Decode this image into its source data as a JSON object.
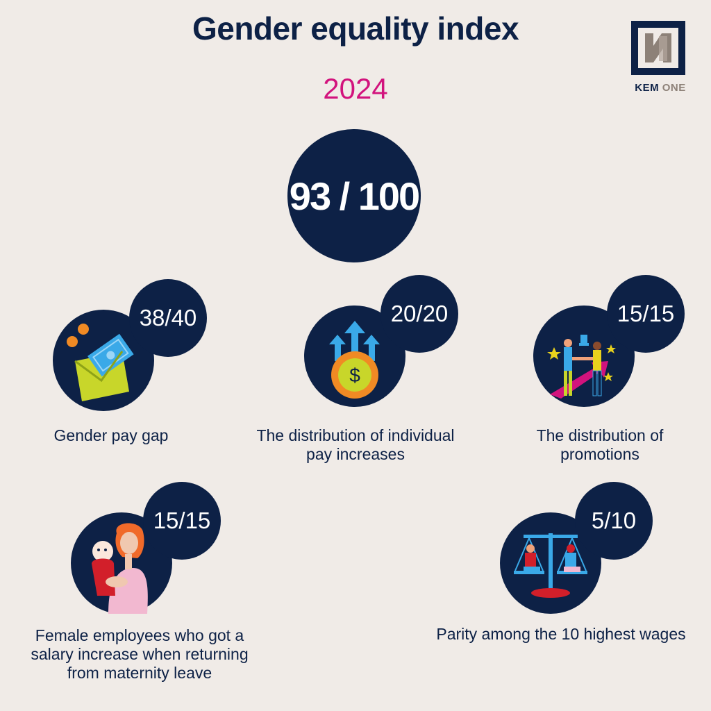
{
  "header": {
    "title": "Gender equality index",
    "year": "2024"
  },
  "logo": {
    "brand_part1": "KEM",
    "brand_part2": "ONE",
    "brand_color": "#0d2146",
    "accent_color": "#8d8178"
  },
  "total_score": "93 / 100",
  "indicators": [
    {
      "score": "38/40",
      "label": "Gender pay gap",
      "icon": "money-envelope-icon"
    },
    {
      "score": "20/20",
      "label": "The distribution of individual pay increases",
      "icon": "dollar-coin-arrows-icon"
    },
    {
      "score": "15/15",
      "label": "The distribution of promotions",
      "icon": "promotion-handshake-icon"
    },
    {
      "score": "15/15",
      "label": "Female employees who got a salary increase when returning from maternity leave",
      "icon": "mother-baby-icon"
    },
    {
      "score": "5/10",
      "label": "Parity among the 10 highest wages",
      "icon": "balance-scale-icon"
    }
  ],
  "colors": {
    "background": "#f0ebe7",
    "navy": "#0d2146",
    "accent_pink": "#d2137d"
  }
}
